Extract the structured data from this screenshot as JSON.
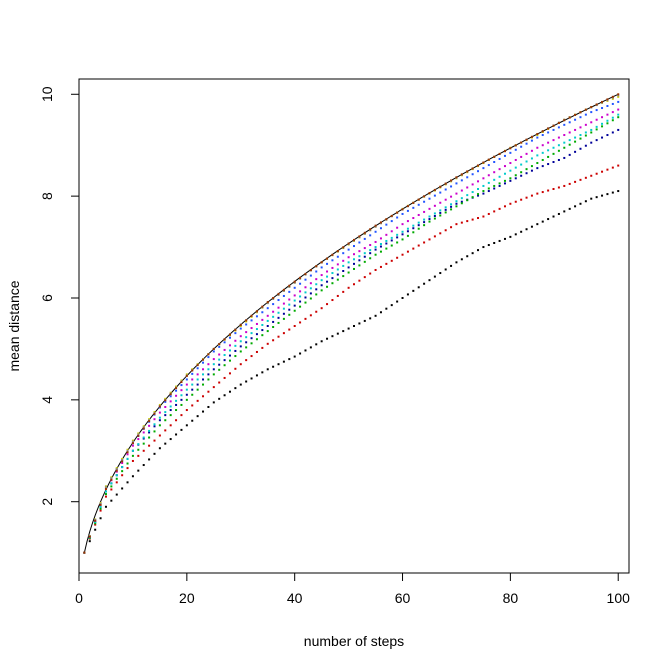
{
  "chart_data": {
    "type": "scatter",
    "title": "",
    "xlabel": "number of steps",
    "ylabel": "mean distance",
    "xlim": [
      0,
      102
    ],
    "ylim": [
      0.6,
      10.3
    ],
    "xticks": [
      0,
      20,
      40,
      60,
      80,
      100
    ],
    "yticks": [
      2,
      4,
      6,
      8,
      10
    ],
    "grid": false,
    "legend": "none",
    "x_range": [
      1,
      100
    ],
    "reference_curve": {
      "function": "sqrt(x)",
      "style": "solid",
      "color": "#000000"
    },
    "series": [
      {
        "color": "#000000",
        "x": [
          1,
          5,
          10,
          15,
          20,
          25,
          30,
          35,
          40,
          45,
          50,
          55,
          60,
          65,
          70,
          75,
          80,
          85,
          90,
          95,
          100
        ],
        "y": [
          1.0,
          1.9,
          2.5,
          3.05,
          3.5,
          3.95,
          4.3,
          4.6,
          4.85,
          5.15,
          5.4,
          5.65,
          6.0,
          6.35,
          6.7,
          7.0,
          7.2,
          7.45,
          7.7,
          7.95,
          8.1
        ]
      },
      {
        "color": "#cc0000",
        "x": [
          1,
          5,
          10,
          15,
          20,
          25,
          30,
          35,
          40,
          45,
          50,
          55,
          60,
          65,
          70,
          75,
          80,
          85,
          90,
          95,
          100
        ],
        "y": [
          1.0,
          2.1,
          2.8,
          3.3,
          3.8,
          4.25,
          4.7,
          5.1,
          5.45,
          5.8,
          6.2,
          6.55,
          6.85,
          7.15,
          7.45,
          7.6,
          7.85,
          8.05,
          8.2,
          8.4,
          8.6
        ]
      },
      {
        "color": "#000099",
        "x": [
          1,
          5,
          10,
          15,
          20,
          25,
          30,
          35,
          40,
          45,
          50,
          55,
          60,
          65,
          70,
          75,
          80,
          85,
          90,
          95,
          100
        ],
        "y": [
          1.0,
          2.2,
          3.0,
          3.6,
          4.1,
          4.6,
          5.05,
          5.45,
          5.85,
          6.25,
          6.6,
          6.95,
          7.25,
          7.55,
          7.85,
          8.05,
          8.3,
          8.55,
          8.75,
          9.05,
          9.3
        ]
      },
      {
        "color": "#00aa00",
        "x": [
          1,
          5,
          10,
          15,
          20,
          25,
          30,
          35,
          40,
          45,
          50,
          55,
          60,
          65,
          70,
          75,
          80,
          85,
          90,
          95,
          100
        ],
        "y": [
          1.0,
          2.15,
          2.9,
          3.5,
          4.0,
          4.5,
          4.95,
          5.35,
          5.75,
          6.15,
          6.5,
          6.85,
          7.15,
          7.5,
          7.8,
          8.1,
          8.35,
          8.65,
          8.95,
          9.25,
          9.55
        ]
      },
      {
        "color": "#00cccc",
        "x": [
          1,
          5,
          10,
          15,
          20,
          25,
          30,
          35,
          40,
          45,
          50,
          55,
          60,
          65,
          70,
          75,
          80,
          85,
          90,
          95,
          100
        ],
        "y": [
          1.0,
          2.2,
          3.0,
          3.65,
          4.2,
          4.7,
          5.15,
          5.55,
          5.95,
          6.35,
          6.7,
          7.0,
          7.3,
          7.6,
          7.9,
          8.2,
          8.5,
          8.8,
          9.05,
          9.3,
          9.6
        ]
      },
      {
        "color": "#cc00cc",
        "x": [
          1,
          5,
          10,
          15,
          20,
          25,
          30,
          35,
          40,
          45,
          50,
          55,
          60,
          65,
          70,
          75,
          80,
          85,
          90,
          95,
          100
        ],
        "y": [
          1.0,
          2.25,
          3.1,
          3.75,
          4.3,
          4.8,
          5.25,
          5.65,
          6.05,
          6.45,
          6.8,
          7.1,
          7.45,
          7.75,
          8.05,
          8.35,
          8.65,
          8.95,
          9.2,
          9.45,
          9.7
        ]
      },
      {
        "color": "#2255ff",
        "x": [
          1,
          5,
          10,
          15,
          20,
          25,
          30,
          35,
          40,
          45,
          50,
          55,
          60,
          65,
          70,
          75,
          80,
          85,
          90,
          95,
          100
        ],
        "y": [
          1.0,
          2.3,
          3.15,
          3.85,
          4.4,
          4.95,
          5.4,
          5.8,
          6.2,
          6.6,
          6.95,
          7.3,
          7.65,
          7.95,
          8.25,
          8.55,
          8.85,
          9.15,
          9.4,
          9.65,
          9.85
        ]
      },
      {
        "color": "#cccc00",
        "x": [
          1,
          5,
          10,
          15,
          20,
          25,
          30,
          35,
          40,
          45,
          50,
          55,
          60,
          65,
          70,
          75,
          80,
          85,
          90,
          95,
          100
        ],
        "y": [
          1.0,
          2.3,
          3.2,
          3.9,
          4.5,
          5.0,
          5.45,
          5.9,
          6.3,
          6.7,
          7.05,
          7.4,
          7.75,
          8.05,
          8.35,
          8.65,
          8.95,
          9.2,
          9.5,
          9.75,
          9.95
        ]
      },
      {
        "color": "#888888",
        "x": [
          1,
          5,
          10,
          15,
          20,
          25,
          30,
          35,
          40,
          45,
          50,
          55,
          60,
          65,
          70,
          75,
          80,
          85,
          90,
          95,
          100
        ],
        "y": [
          1.0,
          2.28,
          3.18,
          3.88,
          4.48,
          5.0,
          5.48,
          5.9,
          6.3,
          6.7,
          7.06,
          7.4,
          7.74,
          8.06,
          8.36,
          8.66,
          8.94,
          9.22,
          9.5,
          9.74,
          9.98
        ]
      },
      {
        "color": "#993300",
        "x": [
          1,
          5,
          10,
          15,
          20,
          25,
          30,
          35,
          40,
          45,
          50,
          55,
          60,
          65,
          70,
          75,
          80,
          85,
          90,
          95,
          100
        ],
        "y": [
          1.0,
          2.25,
          3.15,
          3.87,
          4.47,
          5.0,
          5.47,
          5.92,
          6.32,
          6.7,
          7.07,
          7.42,
          7.74,
          8.06,
          8.37,
          8.66,
          8.94,
          9.22,
          9.49,
          9.75,
          10.0
        ]
      }
    ]
  }
}
